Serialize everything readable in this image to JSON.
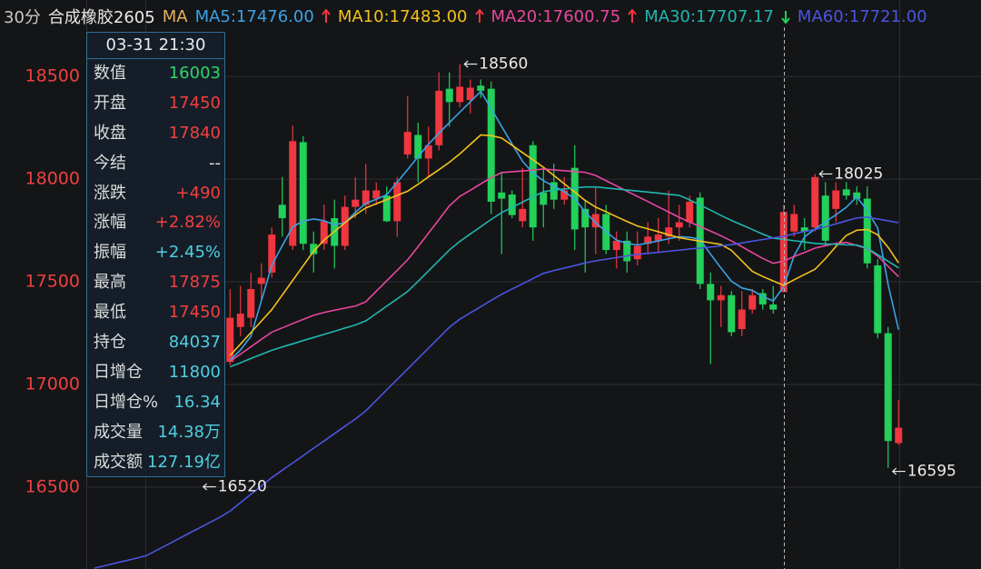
{
  "chart_data": {
    "type": "candlestick",
    "period": "30分",
    "symbol": "合成橡胶2605",
    "indicator": "MA",
    "up_color": "#f0363f",
    "down_color": "#22d05a",
    "ylim": [
      16102,
      18872
    ],
    "yticks": [
      16500,
      17000,
      17500,
      18000,
      18500
    ],
    "ytick_color": "#ee4040",
    "grid": true,
    "categories": [
      null,
      null,
      null,
      null,
      null,
      null,
      null,
      null,
      null,
      null,
      null,
      null,
      null,
      null,
      null,
      null,
      null,
      null,
      null,
      null,
      null,
      null,
      null,
      null,
      null,
      null,
      null,
      null,
      null,
      null,
      null,
      null,
      null,
      null,
      null,
      null,
      null,
      null,
      null,
      null,
      null,
      null,
      null,
      null,
      null,
      null,
      null,
      null,
      null,
      null,
      null,
      null,
      null,
      null,
      null,
      null,
      null,
      null,
      null,
      null,
      null,
      null,
      null,
      null,
      null,
      null,
      null,
      null,
      null,
      null,
      null,
      null,
      null,
      null,
      null,
      null,
      null,
      null
    ],
    "open": [
      null,
      null,
      null,
      null,
      null,
      null,
      null,
      null,
      null,
      null,
      null,
      null,
      null,
      17110,
      17280,
      17325,
      17490,
      17545,
      17875,
      17675,
      18180,
      17685,
      17685,
      17810,
      17675,
      17865,
      17875,
      17905,
      17920,
      17795,
      18120,
      18215,
      18100,
      18165,
      18440,
      18375,
      18385,
      18455,
      18440,
      17935,
      17925,
      17795,
      18165,
      17935,
      17985,
      17900,
      18055,
      17855,
      17765,
      17830,
      17655,
      17700,
      17610,
      17685,
      17700,
      17720,
      17765,
      17790,
      17910,
      17490,
      17410,
      17435,
      17270,
      17365,
      17445,
      17390,
      17450,
      17745,
      17765,
      17765,
      17920,
      17855,
      17950,
      17935,
      17905,
      17580,
      17250,
      16715
    ],
    "high": [
      null,
      null,
      null,
      null,
      null,
      null,
      null,
      null,
      null,
      null,
      null,
      null,
      null,
      17465,
      17480,
      17545,
      17590,
      17765,
      18010,
      18260,
      18210,
      17745,
      17875,
      17900,
      17920,
      18010,
      18075,
      17985,
      17965,
      18010,
      18405,
      18275,
      18255,
      18520,
      18520,
      18560,
      18485,
      18485,
      18475,
      18030,
      17945,
      18055,
      18185,
      18055,
      18075,
      18010,
      18165,
      17900,
      17965,
      17875,
      17745,
      17745,
      17745,
      17790,
      17810,
      17945,
      17875,
      17920,
      17935,
      17545,
      17480,
      17455,
      17455,
      17465,
      17465,
      17480,
      17875,
      17875,
      17810,
      18025,
      17985,
      17985,
      17985,
      17965,
      17965,
      17610,
      17280,
      16925
    ],
    "low": [
      null,
      null,
      null,
      null,
      null,
      null,
      null,
      null,
      null,
      null,
      null,
      null,
      null,
      17095,
      17235,
      17280,
      17410,
      17520,
      17720,
      17655,
      17655,
      17545,
      17655,
      17565,
      17655,
      17810,
      17830,
      17875,
      17790,
      17720,
      18100,
      17985,
      18010,
      18140,
      18255,
      18350,
      18320,
      18395,
      17830,
      17635,
      17810,
      17765,
      17700,
      17765,
      17855,
      17875,
      17655,
      17545,
      17635,
      17635,
      17565,
      17545,
      17580,
      17635,
      17640,
      17685,
      17700,
      17765,
      17465,
      17100,
      17280,
      17235,
      17235,
      17345,
      17365,
      17345,
      17450,
      17720,
      17655,
      17745,
      17675,
      17790,
      17900,
      17875,
      17565,
      17225,
      16595,
      16705
    ],
    "close": [
      null,
      null,
      null,
      null,
      null,
      null,
      null,
      null,
      null,
      null,
      null,
      null,
      null,
      17325,
      17345,
      17465,
      17520,
      17730,
      17810,
      18185,
      17685,
      17635,
      17795,
      17675,
      17865,
      17900,
      17945,
      17945,
      17795,
      17985,
      18230,
      18100,
      18165,
      18430,
      18375,
      18450,
      18445,
      18430,
      17890,
      17905,
      17825,
      17855,
      17765,
      17875,
      17900,
      17945,
      17755,
      17765,
      17830,
      17655,
      17700,
      17600,
      17675,
      17720,
      17730,
      17765,
      17790,
      17890,
      17490,
      17410,
      17435,
      17255,
      17365,
      17435,
      17390,
      17365,
      17840,
      17830,
      17745,
      18010,
      17700,
      17945,
      17920,
      17905,
      17590,
      17250,
      16725,
      16790
    ],
    "series": [
      {
        "name": "MA5:17476.00",
        "color": "#3aa2e6",
        "trend": "up",
        "values": [
          null,
          null,
          null,
          null,
          null,
          null,
          null,
          null,
          null,
          null,
          null,
          null,
          null,
          17118,
          17168,
          17235,
          17408,
          17581,
          17676,
          17768,
          17796,
          17806,
          17798,
          17777,
          17788,
          17839,
          17882,
          17902,
          17924,
          17985,
          18046,
          18109,
          18170,
          18224,
          18275,
          18326,
          18376,
          18427,
          18344,
          18256,
          18171,
          18087,
          18030,
          17992,
          17965,
          17939,
          17904,
          17840,
          17788,
          17745,
          17703,
          17688,
          17679,
          17689,
          17699,
          17710,
          17720,
          17717,
          17706,
          17635,
          17567,
          17503,
          17470,
          17458,
          17429,
          17407,
          17476,
          17627,
          17719,
          17757,
          17792,
          17826,
          17863,
          17914,
          17847,
          17762,
          17487,
          17267
        ]
      },
      {
        "name": "MA10:17483.00",
        "color": "#f2c21b",
        "trend": "up",
        "values": [
          null,
          null,
          null,
          null,
          null,
          null,
          null,
          null,
          null,
          null,
          null,
          null,
          null,
          17141,
          17197,
          17253,
          17309,
          17365,
          17436,
          17507,
          17578,
          17649,
          17703,
          17745,
          17788,
          17826,
          17860,
          17880,
          17900,
          17921,
          17941,
          17975,
          18011,
          18046,
          18082,
          18123,
          18169,
          18215,
          18212,
          18200,
          18165,
          18129,
          18094,
          18058,
          18018,
          17977,
          17937,
          17896,
          17864,
          17841,
          17817,
          17794,
          17772,
          17758,
          17744,
          17729,
          17715,
          17706,
          17698,
          17690,
          17682,
          17653,
          17602,
          17551,
          17526,
          17504,
          17483,
          17510,
          17536,
          17561,
          17613,
          17672,
          17726,
          17751,
          17755,
          17729,
          17668,
          17592
        ]
      },
      {
        "name": "MA20:17600.75",
        "color": "#e8479e",
        "trend": "up",
        "values": [
          null,
          null,
          null,
          null,
          null,
          null,
          null,
          null,
          null,
          null,
          null,
          null,
          null,
          17113,
          17148,
          17184,
          17220,
          17255,
          17276,
          17297,
          17317,
          17337,
          17351,
          17362,
          17372,
          17382,
          17403,
          17454,
          17505,
          17556,
          17607,
          17671,
          17737,
          17803,
          17870,
          17916,
          17946,
          17977,
          18007,
          18032,
          18036,
          18040,
          18044,
          18049,
          18045,
          18041,
          18037,
          18033,
          18018,
          17992,
          17967,
          17941,
          17916,
          17891,
          17865,
          17840,
          17814,
          17791,
          17769,
          17747,
          17724,
          17699,
          17671,
          17642,
          17614,
          17590,
          17600.75,
          17623,
          17643,
          17664,
          17676,
          17687,
          17692,
          17677,
          17662,
          17626,
          17575,
          17525
        ]
      },
      {
        "name": "MA30:17707.17",
        "color": "#1fb7b0",
        "trend": "down",
        "values": [
          null,
          null,
          null,
          null,
          null,
          null,
          null,
          null,
          null,
          null,
          null,
          null,
          null,
          17086,
          17106,
          17127,
          17147,
          17167,
          17183,
          17198,
          17214,
          17229,
          17244,
          17259,
          17275,
          17290,
          17310,
          17346,
          17382,
          17417,
          17453,
          17502,
          17553,
          17604,
          17655,
          17697,
          17733,
          17768,
          17804,
          17837,
          17863,
          17888,
          17914,
          17939,
          17947,
          17952,
          17957,
          17962,
          17962,
          17957,
          17952,
          17947,
          17942,
          17937,
          17932,
          17926,
          17921,
          17899,
          17874,
          17849,
          17823,
          17799,
          17777,
          17755,
          17732,
          17712,
          17707.17,
          17700,
          17694,
          17687,
          17684,
          17683,
          17680,
          17679,
          17664,
          17632,
          17600,
          17568
        ]
      },
      {
        "name": "MA60:17721.00",
        "color": "#4a55e0",
        "values": [
          16106,
          16118,
          16130,
          16142,
          16154,
          16167,
          16194,
          16220,
          16247,
          16274,
          16300,
          16327,
          16353,
          16384,
          16425,
          16466,
          16506,
          16547,
          16583,
          16618,
          16654,
          16690,
          16725,
          16761,
          16797,
          16832,
          16872,
          16923,
          16974,
          17025,
          17075,
          17126,
          17177,
          17228,
          17279,
          17318,
          17349,
          17379,
          17410,
          17439,
          17465,
          17490,
          17516,
          17541,
          17555,
          17567,
          17579,
          17592,
          17602,
          17610,
          17618,
          17626,
          17634,
          17639,
          17644,
          17649,
          17654,
          17660,
          17664,
          17669,
          17675,
          17681,
          17689,
          17698,
          17706,
          17714,
          17721,
          17734,
          17745,
          17755,
          17768,
          17782,
          17797,
          17811,
          17815,
          17806,
          17797,
          17788
        ]
      }
    ],
    "annotations": [
      {
        "x": 35,
        "value": 18560,
        "side": "high"
      },
      {
        "x": 69,
        "value": 18025,
        "side": "high"
      },
      {
        "x": 10,
        "value": 16520,
        "side": "low"
      },
      {
        "x": 76,
        "value": 16595,
        "side": "low"
      }
    ],
    "tooltip": {
      "time": "03-31 21:30",
      "rows": [
        {
          "label": "数值",
          "value": "16003",
          "color": "#2fd46a"
        },
        {
          "label": "开盘",
          "value": "17450",
          "color": "#f0403f"
        },
        {
          "label": "收盘",
          "value": "17840",
          "color": "#f0403f"
        },
        {
          "label": "今结",
          "value": "--",
          "color": "#e8e8e8"
        },
        {
          "label": "涨跌",
          "value": "+490",
          "color": "#f0403f"
        },
        {
          "label": "涨幅",
          "value": "+2.82%",
          "color": "#f0403f"
        },
        {
          "label": "振幅",
          "value": "+2.45%",
          "color": "#4fcfe0"
        },
        {
          "label": "最高",
          "value": "17875",
          "color": "#f0403f"
        },
        {
          "label": "最低",
          "value": "17450",
          "color": "#f0403f"
        },
        {
          "label": "持仓",
          "value": "84037",
          "color": "#4fcfe0"
        },
        {
          "label": "日增仓",
          "value": "11800",
          "color": "#4fcfe0"
        },
        {
          "label": "日增仓%",
          "value": "16.34",
          "color": "#4fcfe0"
        },
        {
          "label": "成交量",
          "value": "14.38万",
          "color": "#4fcfe0"
        },
        {
          "label": "成交额",
          "value": "127.19亿",
          "color": "#4fcfe0"
        }
      ]
    }
  }
}
